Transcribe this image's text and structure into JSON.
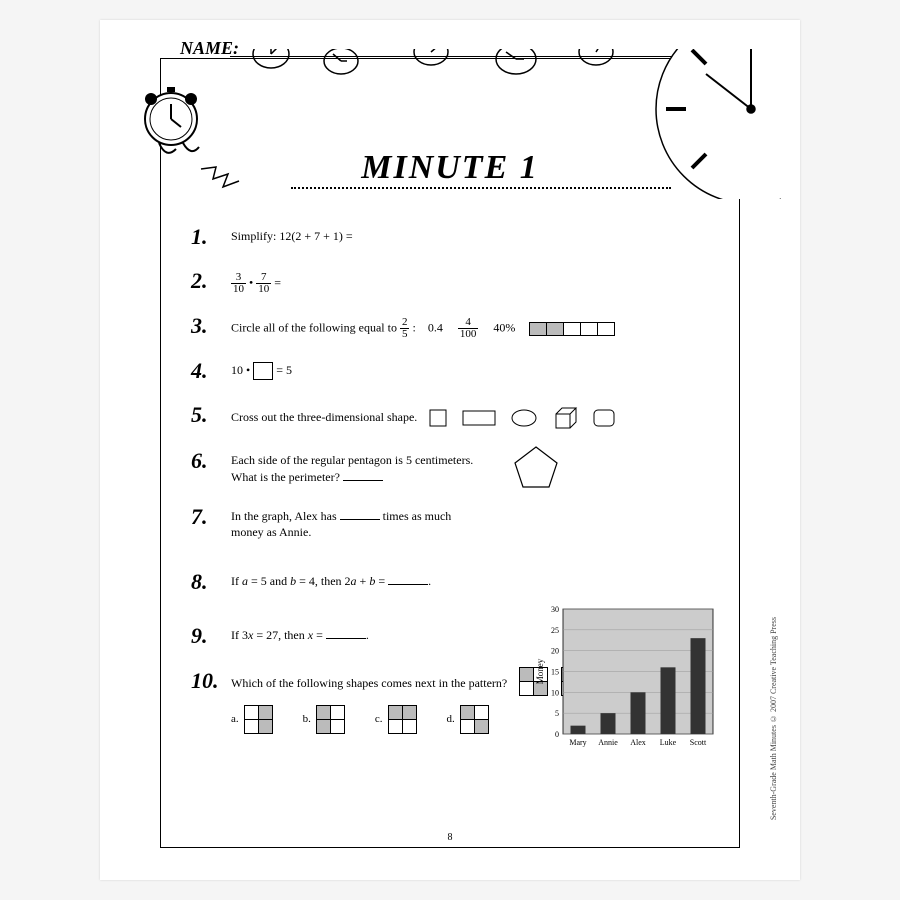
{
  "header": {
    "name_label": "NAME:"
  },
  "title": "MINUTE 1",
  "page_number": "8",
  "copyright": "Seventh-Grade Math Minutes © 2007 Creative Teaching Press",
  "problems": {
    "p1": {
      "num": "1.",
      "text_a": "Simplify: 12",
      "expr": "(2 + 7 + 1)",
      "eq": " = "
    },
    "p2": {
      "num": "2.",
      "f1n": "3",
      "f1d": "10",
      "dot": " • ",
      "f2n": "7",
      "f2d": "10",
      "eq": " = "
    },
    "p3": {
      "num": "3.",
      "text": "Circle all of the following equal to ",
      "fn": "2",
      "fd": "5",
      "colon": " : ",
      "opt1": "0.4",
      "opt2n": "4",
      "opt2d": "100",
      "opt3": "40%",
      "strip_fill": [
        true,
        true,
        false,
        false,
        false
      ]
    },
    "p4": {
      "num": "4.",
      "a": "10 • ",
      "b": " = 5"
    },
    "p5": {
      "num": "5.",
      "text": "Cross out the three-dimensional shape."
    },
    "p6": {
      "num": "6.",
      "line1": "Each side of the regular pentagon is 5 centimeters.",
      "line2": "What is the perimeter? "
    },
    "p7": {
      "num": "7.",
      "a": "In the graph, Alex has ",
      "b": " times as much",
      "c": "money as Annie."
    },
    "p8": {
      "num": "8.",
      "a": "If ",
      "var_a": "a",
      "eq_a": " = 5 and ",
      "var_b": "b",
      "eq_b": " = 4, then 2",
      "var_a2": "a",
      "plus": " + ",
      "var_b2": "b",
      "eq": " = "
    },
    "p9": {
      "num": "9.",
      "a": "If 3",
      "x": "x",
      "b": " = 27, then ",
      "x2": "x",
      "c": " = "
    },
    "p10": {
      "num": "10.",
      "text": "Which of the following shapes comes next in the pattern?",
      "pattern": [
        [
          1,
          0,
          0,
          1
        ],
        [
          1,
          1,
          0,
          0
        ],
        [
          0,
          1,
          1,
          0
        ],
        [
          0,
          0,
          1,
          1
        ]
      ],
      "options": {
        "a": {
          "label": "a.",
          "cells": [
            0,
            1,
            0,
            1
          ]
        },
        "b": {
          "label": "b.",
          "cells": [
            1,
            0,
            1,
            0
          ]
        },
        "c": {
          "label": "c.",
          "cells": [
            1,
            1,
            0,
            0
          ]
        },
        "d": {
          "label": "d.",
          "cells": [
            1,
            0,
            0,
            1
          ]
        }
      }
    }
  },
  "chart": {
    "ylabel": "Money",
    "ymax": 30,
    "ytick": 5,
    "categories": [
      "Mary",
      "Annie",
      "Alex",
      "Luke",
      "Scott"
    ],
    "values": [
      2,
      5,
      10,
      16,
      23
    ],
    "bar_color": "#333333",
    "bg_color": "#cccccc",
    "grid_color": "#999999"
  }
}
